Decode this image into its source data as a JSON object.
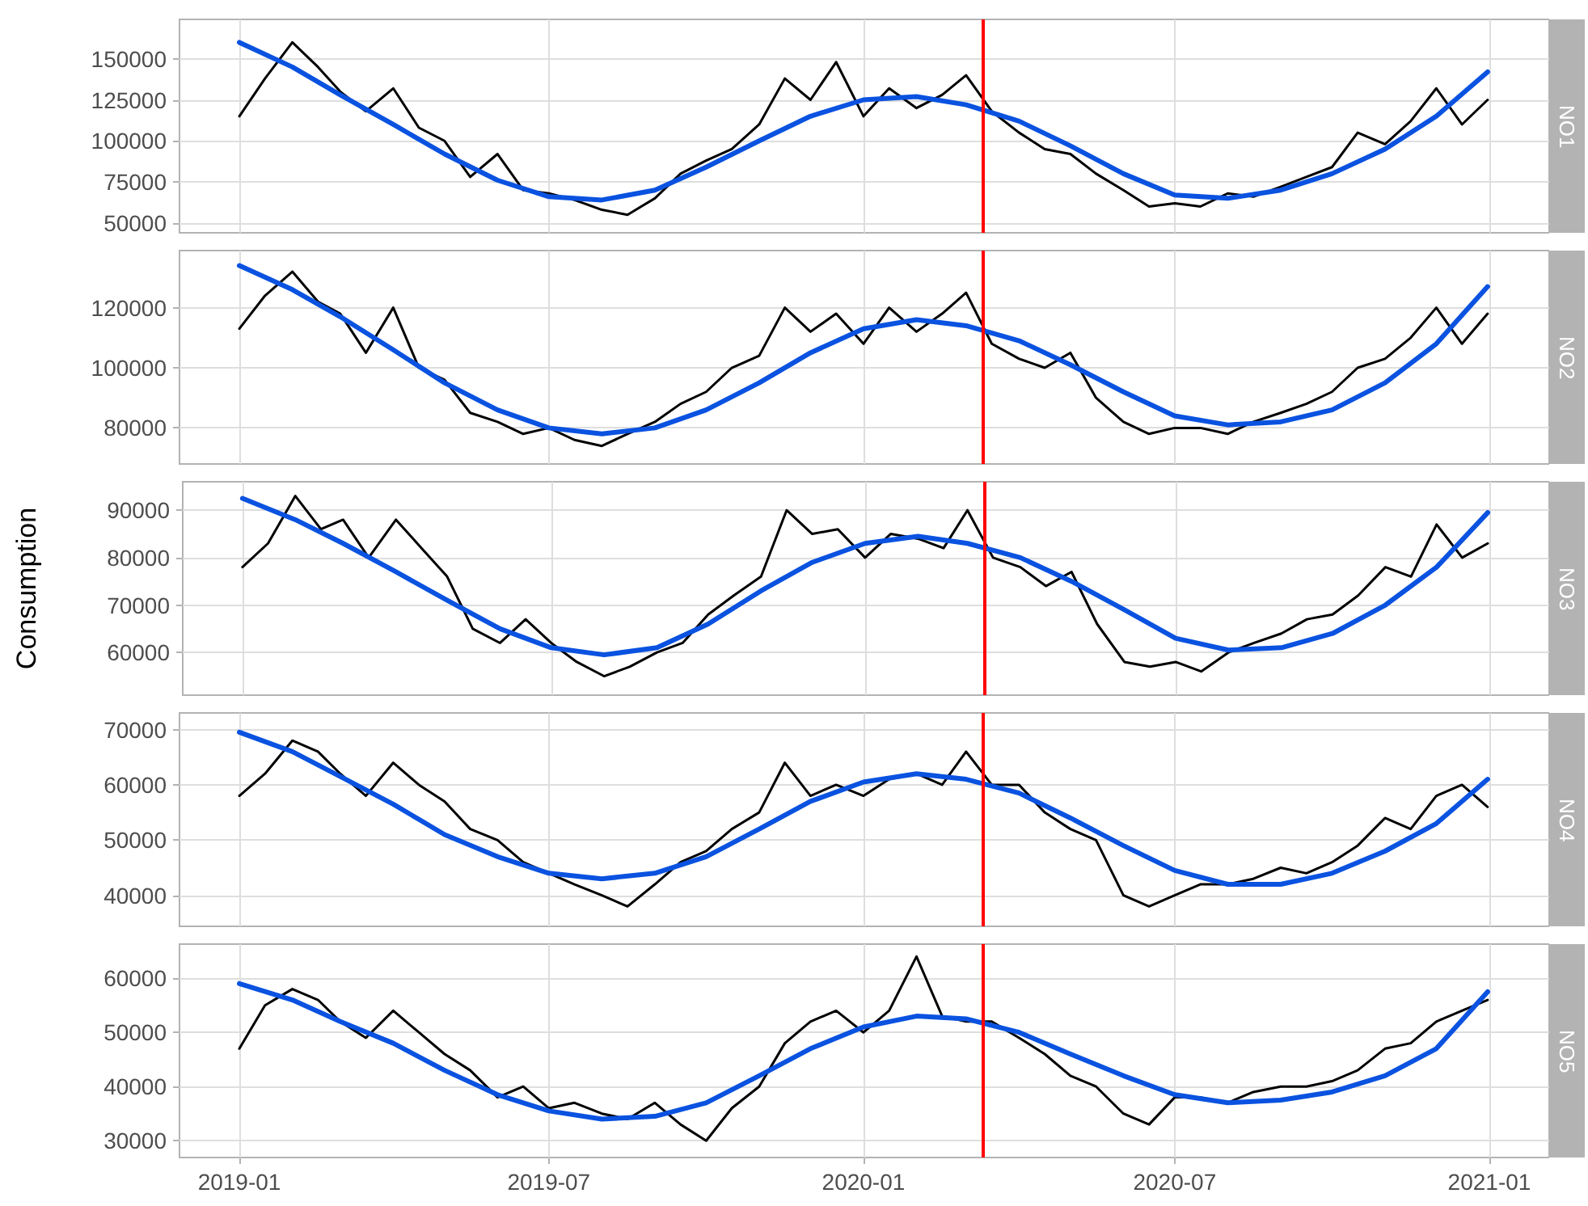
{
  "chart_data": [
    {
      "type": "line",
      "title": "NO1",
      "x": [
        "2019-01-01",
        "2019-01-16",
        "2019-02-01",
        "2019-02-16",
        "2019-03-01",
        "2019-03-16",
        "2019-04-01",
        "2019-04-16",
        "2019-05-01",
        "2019-05-16",
        "2019-06-01",
        "2019-06-16",
        "2019-07-01",
        "2019-07-16",
        "2019-08-01",
        "2019-08-16",
        "2019-09-01",
        "2019-09-16",
        "2019-10-01",
        "2019-10-16",
        "2019-11-01",
        "2019-11-16",
        "2019-12-01",
        "2019-12-16",
        "2020-01-01",
        "2020-01-16",
        "2020-02-01",
        "2020-02-16",
        "2020-03-01",
        "2020-03-16",
        "2020-04-01",
        "2020-04-16",
        "2020-05-01",
        "2020-05-16",
        "2020-06-01",
        "2020-06-16",
        "2020-07-01",
        "2020-07-16",
        "2020-08-01",
        "2020-08-16",
        "2020-09-01",
        "2020-09-16",
        "2020-10-01",
        "2020-10-16",
        "2020-11-01",
        "2020-11-16",
        "2020-12-01",
        "2020-12-16",
        "2020-12-31"
      ],
      "series": [
        {
          "color": "#000000",
          "values": [
            115000,
            138000,
            160000,
            145000,
            130000,
            118000,
            132000,
            108000,
            100000,
            78000,
            92000,
            70000,
            68000,
            64000,
            58000,
            55000,
            65000,
            80000,
            88000,
            95000,
            110000,
            138000,
            125000,
            148000,
            115000,
            132000,
            120000,
            128000,
            140000,
            118000,
            105000,
            95000,
            92000,
            80000,
            70000,
            60000,
            62000,
            60000,
            68000,
            66000,
            72000,
            78000,
            84000,
            105000,
            98000,
            112000,
            132000,
            110000,
            125000
          ]
        },
        {
          "color": "#0a52e0",
          "x": [
            "2019-01-01",
            "2019-02-01",
            "2019-03-01",
            "2019-04-01",
            "2019-05-01",
            "2019-06-01",
            "2019-07-01",
            "2019-08-01",
            "2019-09-01",
            "2019-10-01",
            "2019-11-01",
            "2019-12-01",
            "2020-01-01",
            "2020-02-01",
            "2020-03-01",
            "2020-04-01",
            "2020-05-01",
            "2020-06-01",
            "2020-07-01",
            "2020-08-01",
            "2020-09-01",
            "2020-10-01",
            "2020-11-01",
            "2020-12-01",
            "2020-12-31"
          ],
          "values": [
            160000,
            145000,
            128000,
            110000,
            92000,
            76000,
            66000,
            64000,
            70000,
            84000,
            100000,
            115000,
            125000,
            127000,
            122000,
            112000,
            97000,
            80000,
            67000,
            65000,
            70000,
            80000,
            95000,
            115000,
            142000
          ]
        }
      ],
      "xlim": [
        "2018-11-27",
        "2021-02-05"
      ],
      "xticks": [
        "2019-01",
        "2019-07",
        "2020-01",
        "2020-07",
        "2021-01"
      ],
      "ylim": [
        44000,
        174000
      ],
      "yticks": [
        50000,
        75000,
        100000,
        125000,
        150000
      ],
      "ref_lines": [
        {
          "axis": "x",
          "value": "2020-03-11",
          "color": "#ff0000"
        }
      ],
      "grid": true,
      "marker": "none",
      "tick_labels": "y"
    },
    {
      "type": "line",
      "title": "NO2",
      "x": [
        "2019-01-01",
        "2019-01-16",
        "2019-02-01",
        "2019-02-16",
        "2019-03-01",
        "2019-03-16",
        "2019-04-01",
        "2019-04-16",
        "2019-05-01",
        "2019-05-16",
        "2019-06-01",
        "2019-06-16",
        "2019-07-01",
        "2019-07-16",
        "2019-08-01",
        "2019-08-16",
        "2019-09-01",
        "2019-09-16",
        "2019-10-01",
        "2019-10-16",
        "2019-11-01",
        "2019-11-16",
        "2019-12-01",
        "2019-12-16",
        "2020-01-01",
        "2020-01-16",
        "2020-02-01",
        "2020-02-16",
        "2020-03-01",
        "2020-03-16",
        "2020-04-01",
        "2020-04-16",
        "2020-05-01",
        "2020-05-16",
        "2020-06-01",
        "2020-06-16",
        "2020-07-01",
        "2020-07-16",
        "2020-08-01",
        "2020-08-16",
        "2020-09-01",
        "2020-09-16",
        "2020-10-01",
        "2020-10-16",
        "2020-11-01",
        "2020-11-16",
        "2020-12-01",
        "2020-12-16",
        "2020-12-31"
      ],
      "series": [
        {
          "color": "#000000",
          "values": [
            113000,
            124000,
            132000,
            122000,
            118000,
            105000,
            120000,
            100000,
            96000,
            85000,
            82000,
            78000,
            80000,
            76000,
            74000,
            78000,
            82000,
            88000,
            92000,
            100000,
            104000,
            120000,
            112000,
            118000,
            108000,
            120000,
            112000,
            118000,
            125000,
            108000,
            103000,
            100000,
            105000,
            90000,
            82000,
            78000,
            80000,
            80000,
            78000,
            82000,
            85000,
            88000,
            92000,
            100000,
            103000,
            110000,
            120000,
            108000,
            118000
          ]
        },
        {
          "color": "#0a52e0",
          "x": [
            "2019-01-01",
            "2019-02-01",
            "2019-03-01",
            "2019-04-01",
            "2019-05-01",
            "2019-06-01",
            "2019-07-01",
            "2019-08-01",
            "2019-09-01",
            "2019-10-01",
            "2019-11-01",
            "2019-12-01",
            "2020-01-01",
            "2020-02-01",
            "2020-03-01",
            "2020-04-01",
            "2020-05-01",
            "2020-06-01",
            "2020-07-01",
            "2020-08-01",
            "2020-09-01",
            "2020-10-01",
            "2020-11-01",
            "2020-12-01",
            "2020-12-31"
          ],
          "values": [
            134000,
            126000,
            117000,
            106000,
            95000,
            86000,
            80000,
            78000,
            80000,
            86000,
            95000,
            105000,
            113000,
            116000,
            114000,
            109000,
            101000,
            92000,
            84000,
            81000,
            82000,
            86000,
            95000,
            108000,
            127000
          ]
        }
      ],
      "xlim": [
        "2018-11-27",
        "2021-02-05"
      ],
      "xticks": [
        "2019-01",
        "2019-07",
        "2020-01",
        "2020-07",
        "2021-01"
      ],
      "ylim": [
        68000,
        139000
      ],
      "yticks": [
        80000,
        100000,
        120000
      ],
      "ref_lines": [
        {
          "axis": "x",
          "value": "2020-03-11",
          "color": "#ff0000"
        }
      ],
      "grid": true,
      "marker": "none",
      "tick_labels": "y"
    },
    {
      "type": "line",
      "title": "NO3",
      "ylabel": "Consumption",
      "x": [
        "2019-01-01",
        "2019-01-16",
        "2019-02-01",
        "2019-02-16",
        "2019-03-01",
        "2019-03-16",
        "2019-04-01",
        "2019-04-16",
        "2019-05-01",
        "2019-05-16",
        "2019-06-01",
        "2019-06-16",
        "2019-07-01",
        "2019-07-16",
        "2019-08-01",
        "2019-08-16",
        "2019-09-01",
        "2019-09-16",
        "2019-10-01",
        "2019-10-16",
        "2019-11-01",
        "2019-11-16",
        "2019-12-01",
        "2019-12-16",
        "2020-01-01",
        "2020-01-16",
        "2020-02-01",
        "2020-02-16",
        "2020-03-01",
        "2020-03-16",
        "2020-04-01",
        "2020-04-16",
        "2020-05-01",
        "2020-05-16",
        "2020-06-01",
        "2020-06-16",
        "2020-07-01",
        "2020-07-16",
        "2020-08-01",
        "2020-08-16",
        "2020-09-01",
        "2020-09-16",
        "2020-10-01",
        "2020-10-16",
        "2020-11-01",
        "2020-11-16",
        "2020-12-01",
        "2020-12-16",
        "2020-12-31"
      ],
      "series": [
        {
          "color": "#000000",
          "values": [
            78000,
            83000,
            93000,
            86000,
            88000,
            80000,
            88000,
            82000,
            76000,
            65000,
            62000,
            67000,
            62000,
            58000,
            55000,
            57000,
            60000,
            62000,
            68000,
            72000,
            76000,
            90000,
            85000,
            86000,
            80000,
            85000,
            84000,
            82000,
            90000,
            80000,
            78000,
            74000,
            77000,
            66000,
            58000,
            57000,
            58000,
            56000,
            60000,
            62000,
            64000,
            67000,
            68000,
            72000,
            78000,
            76000,
            87000,
            80000,
            83000
          ]
        },
        {
          "color": "#0a52e0",
          "x": [
            "2019-01-01",
            "2019-02-01",
            "2019-03-01",
            "2019-04-01",
            "2019-05-01",
            "2019-06-01",
            "2019-07-01",
            "2019-08-01",
            "2019-09-01",
            "2019-10-01",
            "2019-11-01",
            "2019-12-01",
            "2020-01-01",
            "2020-02-01",
            "2020-03-01",
            "2020-04-01",
            "2020-05-01",
            "2020-06-01",
            "2020-07-01",
            "2020-08-01",
            "2020-09-01",
            "2020-10-01",
            "2020-11-01",
            "2020-12-01",
            "2020-12-31"
          ],
          "values": [
            92500,
            88000,
            83000,
            77000,
            71000,
            65000,
            61000,
            59500,
            61000,
            66000,
            73000,
            79000,
            83000,
            84500,
            83000,
            80000,
            75000,
            69000,
            63000,
            60500,
            61000,
            64000,
            70000,
            78000,
            89500
          ]
        }
      ],
      "xlim": [
        "2018-11-27",
        "2021-02-05"
      ],
      "xticks": [
        "2019-01",
        "2019-07",
        "2020-01",
        "2020-07",
        "2021-01"
      ],
      "ylim": [
        51000,
        96000
      ],
      "yticks": [
        60000,
        70000,
        80000,
        90000
      ],
      "ref_lines": [
        {
          "axis": "x",
          "value": "2020-03-11",
          "color": "#ff0000"
        }
      ],
      "grid": true,
      "marker": "none",
      "tick_labels": "y"
    },
    {
      "type": "line",
      "title": "NO4",
      "x": [
        "2019-01-01",
        "2019-01-16",
        "2019-02-01",
        "2019-02-16",
        "2019-03-01",
        "2019-03-16",
        "2019-04-01",
        "2019-04-16",
        "2019-05-01",
        "2019-05-16",
        "2019-06-01",
        "2019-06-16",
        "2019-07-01",
        "2019-07-16",
        "2019-08-01",
        "2019-08-16",
        "2019-09-01",
        "2019-09-16",
        "2019-10-01",
        "2019-10-16",
        "2019-11-01",
        "2019-11-16",
        "2019-12-01",
        "2019-12-16",
        "2020-01-01",
        "2020-01-16",
        "2020-02-01",
        "2020-02-16",
        "2020-03-01",
        "2020-03-16",
        "2020-04-01",
        "2020-04-16",
        "2020-05-01",
        "2020-05-16",
        "2020-06-01",
        "2020-06-16",
        "2020-07-01",
        "2020-07-16",
        "2020-08-01",
        "2020-08-16",
        "2020-09-01",
        "2020-09-16",
        "2020-10-01",
        "2020-10-16",
        "2020-11-01",
        "2020-11-16",
        "2020-12-01",
        "2020-12-16",
        "2020-12-31"
      ],
      "series": [
        {
          "color": "#000000",
          "values": [
            58000,
            62000,
            68000,
            66000,
            62000,
            58000,
            64000,
            60000,
            57000,
            52000,
            50000,
            46000,
            44000,
            42000,
            40000,
            38000,
            42000,
            46000,
            48000,
            52000,
            55000,
            64000,
            58000,
            60000,
            58000,
            61000,
            62000,
            60000,
            66000,
            60000,
            60000,
            55000,
            52000,
            50000,
            40000,
            38000,
            40000,
            42000,
            42000,
            43000,
            45000,
            44000,
            46000,
            49000,
            54000,
            52000,
            58000,
            60000,
            56000
          ]
        },
        {
          "color": "#0a52e0",
          "x": [
            "2019-01-01",
            "2019-02-01",
            "2019-03-01",
            "2019-04-01",
            "2019-05-01",
            "2019-06-01",
            "2019-07-01",
            "2019-08-01",
            "2019-09-01",
            "2019-10-01",
            "2019-11-01",
            "2019-12-01",
            "2020-01-01",
            "2020-02-01",
            "2020-03-01",
            "2020-04-01",
            "2020-05-01",
            "2020-06-01",
            "2020-07-01",
            "2020-08-01",
            "2020-09-01",
            "2020-10-01",
            "2020-11-01",
            "2020-12-01",
            "2020-12-31"
          ],
          "values": [
            69500,
            66000,
            61500,
            56500,
            51000,
            47000,
            44000,
            43000,
            44000,
            47000,
            52000,
            57000,
            60500,
            62000,
            61000,
            58500,
            54000,
            49000,
            44500,
            42000,
            42000,
            44000,
            48000,
            53000,
            61000
          ]
        }
      ],
      "xlim": [
        "2018-11-27",
        "2021-02-05"
      ],
      "xticks": [
        "2019-01",
        "2019-07",
        "2020-01",
        "2020-07",
        "2021-01"
      ],
      "ylim": [
        34400,
        73000
      ],
      "yticks": [
        40000,
        50000,
        60000,
        70000
      ],
      "ref_lines": [
        {
          "axis": "x",
          "value": "2020-03-11",
          "color": "#ff0000"
        }
      ],
      "grid": true,
      "marker": "none",
      "tick_labels": "y"
    },
    {
      "type": "line",
      "title": "NO5",
      "x": [
        "2019-01-01",
        "2019-01-16",
        "2019-02-01",
        "2019-02-16",
        "2019-03-01",
        "2019-03-16",
        "2019-04-01",
        "2019-04-16",
        "2019-05-01",
        "2019-05-16",
        "2019-06-01",
        "2019-06-16",
        "2019-07-01",
        "2019-07-16",
        "2019-08-01",
        "2019-08-16",
        "2019-09-01",
        "2019-09-16",
        "2019-10-01",
        "2019-10-16",
        "2019-11-01",
        "2019-11-16",
        "2019-12-01",
        "2019-12-16",
        "2020-01-01",
        "2020-01-16",
        "2020-02-01",
        "2020-02-16",
        "2020-03-01",
        "2020-03-16",
        "2020-04-01",
        "2020-04-16",
        "2020-05-01",
        "2020-05-16",
        "2020-06-01",
        "2020-06-16",
        "2020-07-01",
        "2020-07-16",
        "2020-08-01",
        "2020-08-16",
        "2020-09-01",
        "2020-09-16",
        "2020-10-01",
        "2020-10-16",
        "2020-11-01",
        "2020-11-16",
        "2020-12-01",
        "2020-12-16",
        "2020-12-31"
      ],
      "series": [
        {
          "color": "#000000",
          "values": [
            47000,
            55000,
            58000,
            56000,
            52000,
            49000,
            54000,
            50000,
            46000,
            43000,
            38000,
            40000,
            36000,
            37000,
            35000,
            34000,
            37000,
            33000,
            30000,
            36000,
            40000,
            48000,
            52000,
            54000,
            50000,
            54000,
            64000,
            53000,
            52000,
            52000,
            49000,
            46000,
            42000,
            40000,
            35000,
            33000,
            38000,
            38000,
            37000,
            39000,
            40000,
            40000,
            41000,
            43000,
            47000,
            48000,
            52000,
            54000,
            56000
          ]
        },
        {
          "color": "#0a52e0",
          "x": [
            "2019-01-01",
            "2019-02-01",
            "2019-03-01",
            "2019-04-01",
            "2019-05-01",
            "2019-06-01",
            "2019-07-01",
            "2019-08-01",
            "2019-09-01",
            "2019-10-01",
            "2019-11-01",
            "2019-12-01",
            "2020-01-01",
            "2020-02-01",
            "2020-03-01",
            "2020-04-01",
            "2020-05-01",
            "2020-06-01",
            "2020-07-01",
            "2020-08-01",
            "2020-09-01",
            "2020-10-01",
            "2020-11-01",
            "2020-12-01",
            "2020-12-31"
          ],
          "values": [
            59000,
            56000,
            52000,
            48000,
            43000,
            38500,
            35500,
            34000,
            34500,
            37000,
            42000,
            47000,
            51000,
            53000,
            52500,
            50000,
            46000,
            42000,
            38500,
            37000,
            37500,
            39000,
            42000,
            47000,
            57500
          ]
        }
      ],
      "xlim": [
        "2018-11-27",
        "2021-02-05"
      ],
      "xticks": [
        "2019-01",
        "2019-07",
        "2020-01",
        "2020-07",
        "2021-01"
      ],
      "ylim": [
        26900,
        66300
      ],
      "yticks": [
        30000,
        40000,
        50000,
        60000
      ],
      "ref_lines": [
        {
          "axis": "x",
          "value": "2020-03-11",
          "color": "#ff0000"
        }
      ],
      "grid": true,
      "marker": "none"
    }
  ]
}
